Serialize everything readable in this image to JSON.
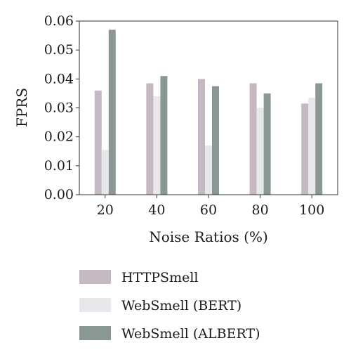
{
  "chart_data": {
    "type": "bar",
    "title": "",
    "xlabel": "Noise Ratios (%)",
    "ylabel": "FPRS",
    "categories": [
      "20",
      "40",
      "60",
      "80",
      "100"
    ],
    "ylim": [
      0,
      0.06
    ],
    "yticks": [
      "0.00",
      "0.01",
      "0.02",
      "0.03",
      "0.04",
      "0.05",
      "0.06"
    ],
    "grid": false,
    "legend_position": "bottom",
    "series": [
      {
        "name": "HTTPSmell",
        "color": "#c6b8c2",
        "values": [
          0.036,
          0.0385,
          0.04,
          0.0385,
          0.0315
        ]
      },
      {
        "name": "WebSmell (BERT)",
        "color": "#e8e8ec",
        "values": [
          0.0155,
          0.034,
          0.017,
          0.03,
          0.0335
        ]
      },
      {
        "name": "WebSmell (ALBERT)",
        "color": "#8a9893",
        "values": [
          0.057,
          0.041,
          0.0375,
          0.035,
          0.0385
        ]
      }
    ]
  }
}
